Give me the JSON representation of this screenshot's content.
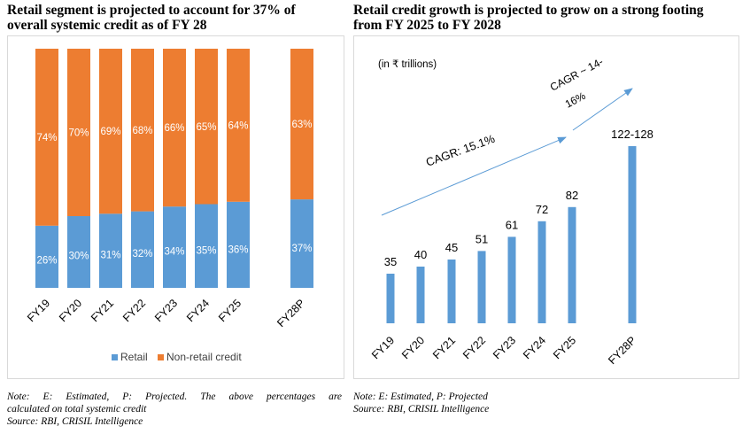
{
  "left": {
    "title_line1": "Retail segment is projected to account for 37% of",
    "title_line2": "overall systemic credit as of FY 28",
    "note_line1": "Note: E: Estimated, P: Projected. The above percentages are",
    "note_line2": "calculated on total systemic credit",
    "note_line3": "Source: RBI, CRISIL Intelligence"
  },
  "right": {
    "title_line1": "Retail credit growth is projected to grow on a strong footing",
    "title_line2": "from FY 2025 to FY 2028",
    "note_line1": "Note: E: Estimated, P: Projected",
    "note_line2": "Source: RBI, CRISIL Intelligence"
  },
  "chart_data": [
    {
      "type": "bar",
      "stacked": true,
      "percent": true,
      "categories": [
        "FY19",
        "FY20",
        "FY21",
        "FY22",
        "FY23",
        "FY24",
        "FY25",
        "FY28P"
      ],
      "series": [
        {
          "name": "Retail",
          "values": [
            26,
            30,
            31,
            32,
            34,
            35,
            36,
            37
          ],
          "labels": [
            "26%",
            "30%",
            "31%",
            "32%",
            "34%",
            "35%",
            "36%",
            "37%"
          ],
          "color": "#5b9bd5"
        },
        {
          "name": "Non-retail credit",
          "values": [
            74,
            70,
            69,
            68,
            66,
            65,
            64,
            63
          ],
          "labels": [
            "74%",
            "70%",
            "69%",
            "68%",
            "66%",
            "65%",
            "64%",
            "63%"
          ],
          "color": "#ed7d31"
        }
      ],
      "ylim": [
        0,
        100
      ],
      "grid": false,
      "legend_position": "bottom"
    },
    {
      "type": "bar",
      "unit_label": "(in ₹ trillions)",
      "categories": [
        "FY19",
        "FY20",
        "FY21",
        "FY22",
        "FY23",
        "FY24",
        "FY25",
        "FY28P"
      ],
      "values": [
        35,
        40,
        45,
        51,
        61,
        72,
        82,
        125
      ],
      "value_labels": [
        "35",
        "40",
        "45",
        "51",
        "61",
        "72",
        "82",
        "122-128"
      ],
      "color": "#5b9bd5",
      "ylim": [
        0,
        140
      ],
      "grid": false,
      "annotations": [
        {
          "text": "CAGR: 15.1%",
          "from": "FY19",
          "to": "FY25"
        },
        {
          "text_line1": "CAGR ~ 14-",
          "text_line2": "16%",
          "from": "FY25",
          "to": "FY28P"
        }
      ]
    }
  ]
}
